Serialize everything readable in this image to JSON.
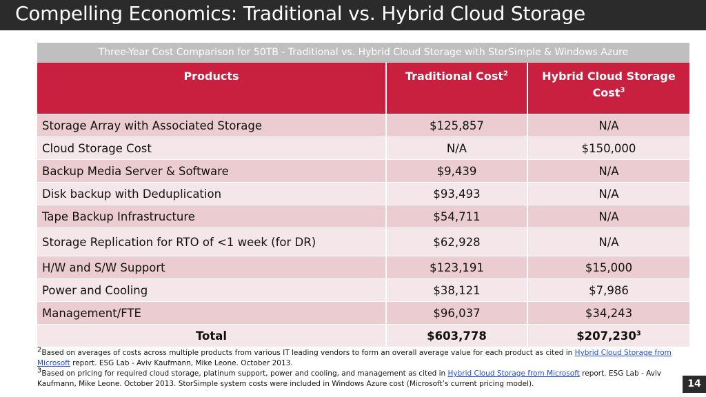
{
  "slide": {
    "title": "Compelling Economics: Traditional vs. Hybrid Cloud Storage",
    "caption": "Three-Year Cost Comparison for 50TB - Traditional vs. Hybrid Cloud Storage with StorSimple & Windows Azure",
    "page_number": "14"
  },
  "table": {
    "headers": {
      "products": "Products",
      "traditional": "Traditional Cost",
      "traditional_sup": "2",
      "hybrid": "Hybrid Cloud Storage Cost",
      "hybrid_sup": "3"
    },
    "rows": [
      {
        "product": "Storage Array with Associated Storage",
        "traditional": "$125,857",
        "hybrid": "N/A"
      },
      {
        "product": "Cloud Storage Cost",
        "traditional": "N/A",
        "hybrid": "$150,000"
      },
      {
        "product": "Backup Media Server & Software",
        "traditional": "$9,439",
        "hybrid": "N/A"
      },
      {
        "product": "Disk backup with Deduplication",
        "traditional": "$93,493",
        "hybrid": "N/A"
      },
      {
        "product": "Tape Backup Infrastructure",
        "traditional": "$54,711",
        "hybrid": "N/A"
      },
      {
        "product": "Storage Replication for RTO of <1 week (for DR)",
        "traditional": "$62,928",
        "hybrid": "N/A"
      },
      {
        "product": "H/W and S/W Support",
        "traditional": "$123,191",
        "hybrid": "$15,000"
      },
      {
        "product": "Power and Cooling",
        "traditional": "$38,121",
        "hybrid": "$7,986"
      },
      {
        "product": "Management/FTE",
        "traditional": "$96,037",
        "hybrid": "$34,243"
      }
    ],
    "total": {
      "label": "Total",
      "traditional": "$603,778",
      "hybrid": "$207,230",
      "hybrid_sup": "3"
    }
  },
  "footnotes": {
    "n2": {
      "sup": "2",
      "text_before": "Based on averages of costs across multiple products from various IT leading vendors to form an overall average value for each product as cited in ",
      "link": "Hybrid Cloud Storage from Microsoft",
      "text_after": " report. ESG Lab - Aviv Kaufmann, Mike Leone. October 2013."
    },
    "n3": {
      "sup": "3",
      "text_before": "Based on pricing for required cloud storage, platinum support, power and cooling, and management as cited in ",
      "link": "Hybrid Cloud Storage from Microsoft",
      "text_after": " report. ESG Lab - Aviv Kaufmann, Mike Leone. October 2013.  StorSimple system costs were included in Windows Azure cost (Microsoft’s current pricing model)."
    }
  },
  "colors": {
    "title_bar": "#2b2b2b",
    "header_red": "#c8203e",
    "caption_gray": "#bfbfbf",
    "row_dark": "#ebcdd1",
    "row_light": "#f5e7e9",
    "link_blue": "#1f4ee0"
  }
}
